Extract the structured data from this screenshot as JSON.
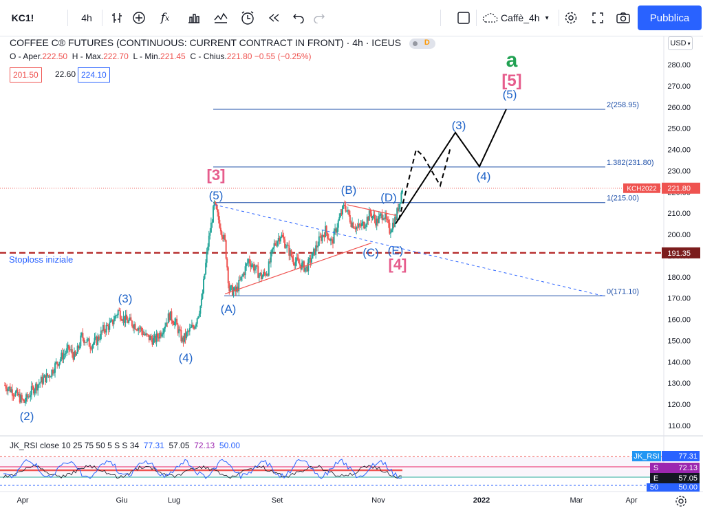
{
  "toolbar": {
    "symbol": "KC1!",
    "interval": "4h",
    "layout_name": "Caffè_4h",
    "publish_label": "Pubblica",
    "icons": [
      "bar-style-icon",
      "indicators-icon",
      "fx-icon",
      "compare-icon",
      "templates-icon",
      "alert-icon",
      "replay-icon",
      "undo-icon",
      "redo-icon",
      "layout-square-icon",
      "cloud-icon",
      "settings-icon",
      "fullscreen-icon",
      "camera-icon"
    ]
  },
  "legend": {
    "title": "COFFEE C® FUTURES (CONTINUOUS: CURRENT CONTRACT IN FRONT) · 4h · ICEUS",
    "badge": "D",
    "open_label": "O - Aper.",
    "open": "222.50",
    "high_label": "H - Max.",
    "high": "222.70",
    "low_label": "L - Min.",
    "low": "221.45",
    "close_label": "C - Chius.",
    "close": "221.80",
    "change": "−0.55 (−0.25%)",
    "bid": "201.50",
    "spread": "22.60",
    "ask": "224.10"
  },
  "currency": "USD",
  "chart_data": {
    "type": "candlestick",
    "title": "COFFEE C® FUTURES (CONTINUOUS: CURRENT CONTRACT IN FRONT)",
    "ylim": [
      105,
      285
    ],
    "yticks": [
      110,
      120,
      130,
      140,
      150,
      160,
      170,
      180,
      190,
      200,
      210,
      220,
      230,
      240,
      250,
      260,
      270,
      280
    ],
    "ytick_labels": [
      "110.00",
      "120.00",
      "130.00",
      "140.00",
      "150.00",
      "160.00",
      "170.00",
      "180.00",
      "190.00",
      "200.00",
      "210.00",
      "220.00",
      "230.00",
      "240.00",
      "250.00",
      "260.00",
      "270.00",
      "280.00"
    ],
    "xticks": [
      "Apr",
      "Giu",
      "Lug",
      "Set",
      "Nov",
      "2022",
      "Mar",
      "Apr"
    ],
    "approx_close_path": [
      {
        "t": 0,
        "v": 129
      },
      {
        "t": 4,
        "v": 126
      },
      {
        "t": 7,
        "v": 123
      },
      {
        "t": 9,
        "v": 121
      },
      {
        "t": 13,
        "v": 127
      },
      {
        "t": 17,
        "v": 131
      },
      {
        "t": 21,
        "v": 134
      },
      {
        "t": 24,
        "v": 139
      },
      {
        "t": 27,
        "v": 143
      },
      {
        "t": 30,
        "v": 146
      },
      {
        "t": 33,
        "v": 142
      },
      {
        "t": 36,
        "v": 152
      },
      {
        "t": 40,
        "v": 148
      },
      {
        "t": 43,
        "v": 150
      },
      {
        "t": 46,
        "v": 155
      },
      {
        "t": 50,
        "v": 158
      },
      {
        "t": 53,
        "v": 164
      },
      {
        "t": 56,
        "v": 160
      },
      {
        "t": 60,
        "v": 158
      },
      {
        "t": 63,
        "v": 156
      },
      {
        "t": 66,
        "v": 152
      },
      {
        "t": 70,
        "v": 150
      },
      {
        "t": 73,
        "v": 154
      },
      {
        "t": 77,
        "v": 162
      },
      {
        "t": 80,
        "v": 158
      },
      {
        "t": 83,
        "v": 150
      },
      {
        "t": 86,
        "v": 154
      },
      {
        "t": 89,
        "v": 158
      },
      {
        "t": 92,
        "v": 168
      },
      {
        "t": 95,
        "v": 195
      },
      {
        "t": 98,
        "v": 214
      },
      {
        "t": 100,
        "v": 207
      },
      {
        "t": 103,
        "v": 196
      },
      {
        "t": 105,
        "v": 174
      },
      {
        "t": 108,
        "v": 173
      },
      {
        "t": 111,
        "v": 180
      },
      {
        "t": 114,
        "v": 188
      },
      {
        "t": 117,
        "v": 184
      },
      {
        "t": 120,
        "v": 180
      },
      {
        "t": 123,
        "v": 183
      },
      {
        "t": 126,
        "v": 195
      },
      {
        "t": 129,
        "v": 200
      },
      {
        "t": 132,
        "v": 194
      },
      {
        "t": 135,
        "v": 188
      },
      {
        "t": 138,
        "v": 186
      },
      {
        "t": 141,
        "v": 184
      },
      {
        "t": 144,
        "v": 190
      },
      {
        "t": 147,
        "v": 197
      },
      {
        "t": 150,
        "v": 202
      },
      {
        "t": 153,
        "v": 196
      },
      {
        "t": 156,
        "v": 206
      },
      {
        "t": 159,
        "v": 214
      },
      {
        "t": 162,
        "v": 206
      },
      {
        "t": 165,
        "v": 203
      },
      {
        "t": 168,
        "v": 205
      },
      {
        "t": 171,
        "v": 210
      },
      {
        "t": 174,
        "v": 206
      },
      {
        "t": 177,
        "v": 210
      },
      {
        "t": 180,
        "v": 202
      },
      {
        "t": 183,
        "v": 208
      },
      {
        "t": 186,
        "v": 222
      }
    ],
    "horizontal_levels": [
      {
        "label": "2(258.95)",
        "value": 258.95
      },
      {
        "label": "1.382(231.80)",
        "value": 231.8
      },
      {
        "label": "1(215.00)",
        "value": 215.0
      },
      {
        "label": "0(171.10)",
        "value": 171.1
      }
    ],
    "stoploss": {
      "label": "Stoploss iniziale",
      "value": 191.35,
      "value_label": "191.35"
    },
    "current_price": {
      "symbol": "KCH2022",
      "value": 221.8,
      "value_label": "221.80"
    },
    "wave_labels": [
      "(2)",
      "(3)",
      "(4)",
      "(5)",
      "(A)",
      "(B)",
      "(C)",
      "(D)",
      "(E)",
      "(3)",
      "(4)",
      "(5)"
    ],
    "degree_labels": {
      "wave3": "[3]",
      "wave4": "[4]",
      "wave5": "[5]",
      "a": "a"
    }
  },
  "rsi": {
    "legend": "JK_RSI close 10 25 75 50 5 S S 34",
    "values": [
      "77.31",
      "57.05",
      "72.13",
      "50.00"
    ],
    "tags": {
      "name": "JK_RSI",
      "v1": "77.31",
      "s": "S",
      "s_val": "72.13",
      "e": "E",
      "e_val": "57.05",
      "fifty": "50",
      "fifty_val": "50.00"
    }
  },
  "colors": {
    "up": "#26a69a",
    "down": "#ef5350",
    "accent": "#2962ff",
    "wave": "#1e63c8",
    "pink": "#e65c8c",
    "green": "#21a152",
    "stop": "#b22222"
  }
}
